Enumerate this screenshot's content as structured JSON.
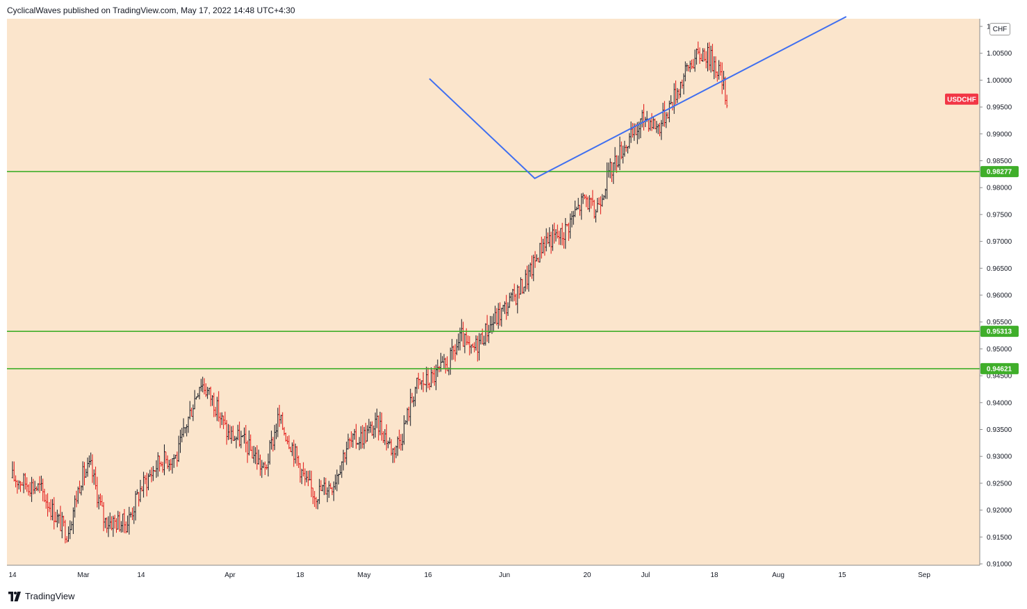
{
  "header": {
    "published_line": "CyclicalWaves published on TradingView.com, May 17, 2022 14:48 UTC+4:30"
  },
  "footer": {
    "brand": "TradingView",
    "logo_icon": "tradingview-logo-icon"
  },
  "currency_badge": "CHF",
  "colors": {
    "background": "#fbe5cc",
    "candle_up": "#131722",
    "candle_down": "#e01010",
    "level_line": "#3fae2a",
    "projection_line": "#3f6ff0",
    "symbol_tag": "#f23645"
  },
  "chart_data": {
    "type": "candlestick",
    "symbol": "USDCHF",
    "axis_labels": [
      "1",
      "1.00500",
      "1.00000",
      "0.99500",
      "0.99000",
      "0.98500",
      "0.98000",
      "0.97500",
      "0.97000",
      "0.96500",
      "0.96000",
      "0.95500",
      "0.95000",
      "0.94500",
      "0.94000",
      "0.93500",
      "0.93000",
      "0.92500",
      "0.92000",
      "0.91500",
      "0.91000"
    ],
    "ylim": [
      0.91,
      1.0097
    ],
    "x_labels": [
      "14",
      "Mar",
      "14",
      "Apr",
      "18",
      "May",
      "16",
      "Jun",
      "20",
      "Jul",
      "18",
      "Aug",
      "15",
      "Sep"
    ],
    "last_price": 0.9962,
    "horizontal_levels": [
      {
        "value": 0.98277,
        "label": "0.98277"
      },
      {
        "value": 0.95313,
        "label": "0.95313"
      },
      {
        "value": 0.94621,
        "label": "0.94621"
      }
    ],
    "projection_path": [
      {
        "date": "2022-05-16",
        "price": 1.0
      },
      {
        "date": "2022-06-08",
        "price": 0.9815
      },
      {
        "date": "2022-08-15",
        "price": 1.0115
      }
    ],
    "price_path": [
      {
        "date": "2022-02-14",
        "price": 0.926
      },
      {
        "date": "2022-02-20",
        "price": 0.924
      },
      {
        "date": "2022-02-24",
        "price": 0.918
      },
      {
        "date": "2022-02-26",
        "price": 0.9158
      },
      {
        "date": "2022-03-01",
        "price": 0.926
      },
      {
        "date": "2022-03-03",
        "price": 0.928
      },
      {
        "date": "2022-03-06",
        "price": 0.918
      },
      {
        "date": "2022-03-11",
        "price": 0.9175
      },
      {
        "date": "2022-03-14",
        "price": 0.924
      },
      {
        "date": "2022-03-18",
        "price": 0.929
      },
      {
        "date": "2022-03-22",
        "price": 0.93
      },
      {
        "date": "2022-03-24",
        "price": 0.936
      },
      {
        "date": "2022-03-27",
        "price": 0.944
      },
      {
        "date": "2022-03-30",
        "price": 0.94
      },
      {
        "date": "2022-04-02",
        "price": 0.934
      },
      {
        "date": "2022-04-05",
        "price": 0.933
      },
      {
        "date": "2022-04-08",
        "price": 0.93
      },
      {
        "date": "2022-04-10",
        "price": 0.927
      },
      {
        "date": "2022-04-13",
        "price": 0.937
      },
      {
        "date": "2022-04-16",
        "price": 0.932
      },
      {
        "date": "2022-04-19",
        "price": 0.925
      },
      {
        "date": "2022-04-21",
        "price": 0.923
      },
      {
        "date": "2022-04-25",
        "price": 0.925
      },
      {
        "date": "2022-04-28",
        "price": 0.932
      },
      {
        "date": "2022-05-02",
        "price": 0.934
      },
      {
        "date": "2022-05-05",
        "price": 0.936
      },
      {
        "date": "2022-05-08",
        "price": 0.931
      },
      {
        "date": "2022-05-10",
        "price": 0.934
      },
      {
        "date": "2022-05-13",
        "price": 0.943
      },
      {
        "date": "2022-05-16",
        "price": 0.944
      },
      {
        "date": "2022-05-20",
        "price": 0.947
      },
      {
        "date": "2022-05-23",
        "price": 0.952
      },
      {
        "date": "2022-05-25",
        "price": 0.949
      },
      {
        "date": "2022-05-29",
        "price": 0.954
      },
      {
        "date": "2022-06-01",
        "price": 0.957
      },
      {
        "date": "2022-06-04",
        "price": 0.96
      },
      {
        "date": "2022-06-07",
        "price": 0.964
      },
      {
        "date": "2022-06-10",
        "price": 0.97
      },
      {
        "date": "2022-06-14",
        "price": 0.971
      },
      {
        "date": "2022-06-16",
        "price": 0.974
      },
      {
        "date": "2022-06-19",
        "price": 0.978
      },
      {
        "date": "2022-06-21",
        "price": 0.975
      },
      {
        "date": "2022-06-24",
        "price": 0.982
      },
      {
        "date": "2022-06-27",
        "price": 0.987
      },
      {
        "date": "2022-06-30",
        "price": 0.99
      },
      {
        "date": "2022-07-02",
        "price": 0.993
      },
      {
        "date": "2022-07-05",
        "price": 0.991
      },
      {
        "date": "2022-07-08",
        "price": 0.996
      },
      {
        "date": "2022-07-12",
        "price": 1.003
      },
      {
        "date": "2022-07-15",
        "price": 1.005
      },
      {
        "date": "2022-07-18",
        "price": 1.002
      },
      {
        "date": "2022-07-20",
        "price": 0.9962
      }
    ]
  }
}
